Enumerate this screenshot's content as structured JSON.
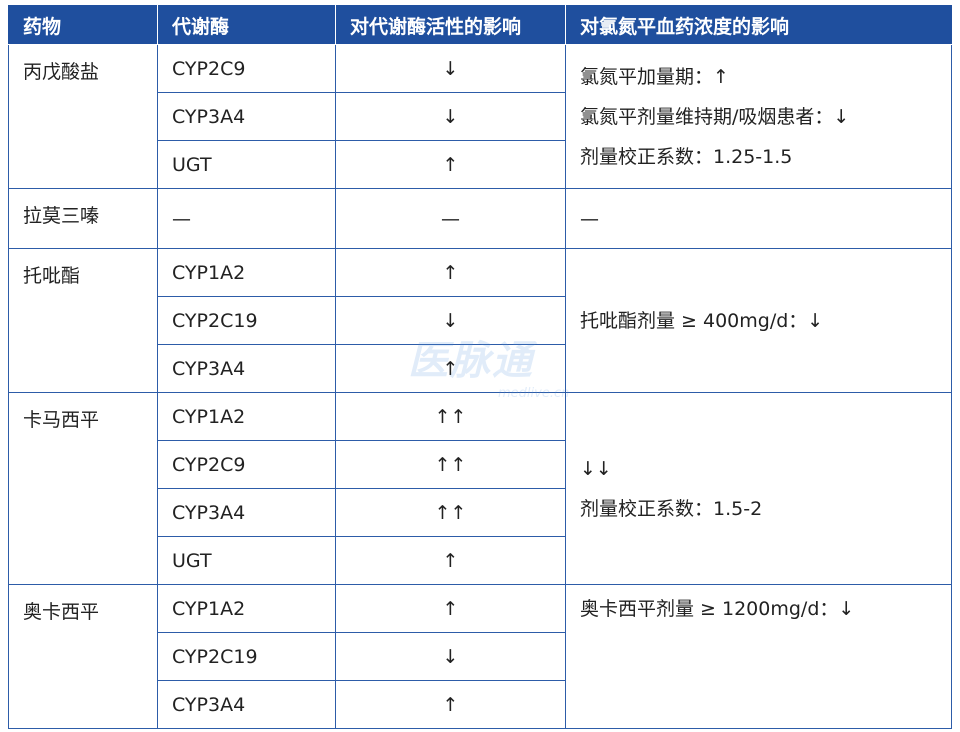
{
  "table": {
    "header": [
      "药物",
      "代谢酶",
      "对代谢酶活性的影响",
      "对氯氮平血药浓度的影响"
    ],
    "groups": [
      {
        "drug": "丙戊酸盐",
        "rows": [
          [
            "CYP2C9",
            "↓"
          ],
          [
            "CYP3A4",
            "↓"
          ],
          [
            "UGT",
            "↑"
          ]
        ],
        "effect": [
          "氯氮平加量期：↑",
          "氯氮平剂量维持期/吸烟患者：↓",
          "剂量校正系数：1.25-1.5"
        ]
      },
      {
        "drug": "拉莫三嗪",
        "rows": [
          [
            "—",
            "—"
          ]
        ],
        "effect": [
          "—"
        ]
      },
      {
        "drug": "托吡酯",
        "rows": [
          [
            "CYP1A2",
            "↑"
          ],
          [
            "CYP2C19",
            "↓"
          ],
          [
            "CYP3A4",
            "↑"
          ]
        ],
        "effect": [
          "托吡酯剂量 ≥ 400mg/d：↓"
        ]
      },
      {
        "drug": "卡马西平",
        "rows": [
          [
            "CYP1A2",
            "↑↑"
          ],
          [
            "CYP2C9",
            "↑↑"
          ],
          [
            "CYP3A4",
            "↑↑"
          ],
          [
            "UGT",
            "↑"
          ]
        ],
        "effect": [
          "↓↓",
          "剂量校正系数：1.5-2"
        ]
      },
      {
        "drug": "奥卡西平",
        "rows": [
          [
            "CYP1A2",
            "↑"
          ],
          [
            "CYP2C19",
            "↓"
          ],
          [
            "CYP3A4",
            "↑"
          ]
        ],
        "effect": [
          "奥卡西平剂量 ≥ 1200mg/d：↓"
        ]
      }
    ]
  },
  "watermark": {
    "logo": "医脉通",
    "site": "medlive.cn"
  }
}
